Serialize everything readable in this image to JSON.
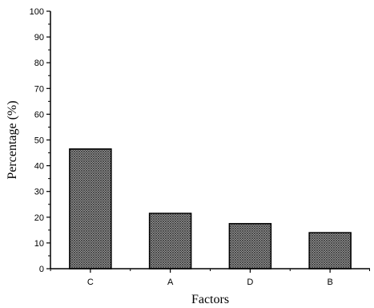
{
  "chart_data": {
    "type": "bar",
    "categories": [
      "C",
      "A",
      "D",
      "B"
    ],
    "values": [
      46.5,
      21.5,
      17.5,
      14
    ],
    "xlabel": "Factors",
    "ylabel": "Percentage (%)",
    "ylim": [
      0,
      100
    ],
    "yticks": [
      0,
      10,
      20,
      30,
      40,
      50,
      60,
      70,
      80,
      90,
      100
    ],
    "grid": false,
    "bar_fill": "crosshatch pattern, dark grey",
    "colors": {
      "bar": "#7a7a7a",
      "axis": "#000000"
    }
  }
}
